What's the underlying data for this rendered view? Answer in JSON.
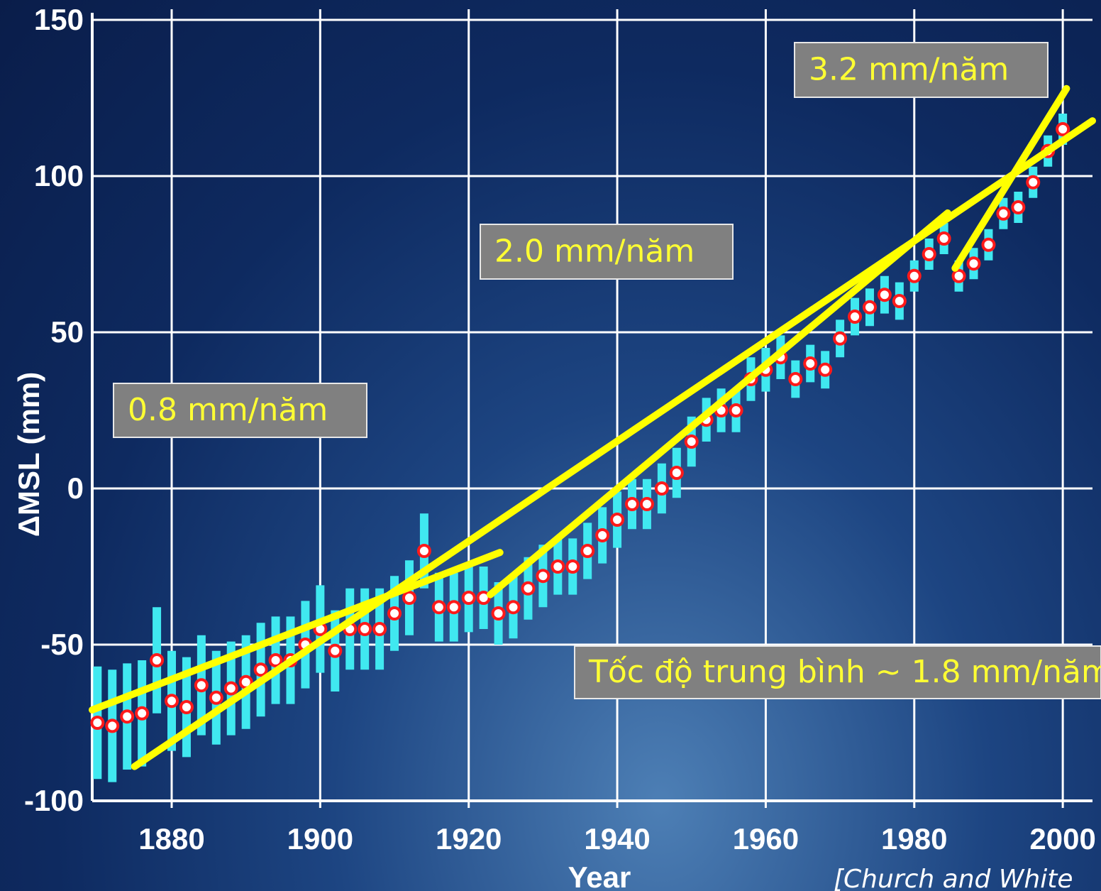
{
  "chart_data": {
    "type": "scatter",
    "x_label": "Year",
    "y_label": "ΔMSL (mm)",
    "xlim": [
      1869.3,
      2004
    ],
    "ylim": [
      -100,
      150
    ],
    "xticks": [
      1880,
      1900,
      1920,
      1940,
      1960,
      1980,
      2000
    ],
    "yticks": [
      -100,
      -50,
      0,
      50,
      100,
      150
    ],
    "grid": true,
    "x": [
      1870,
      1872,
      1874,
      1876,
      1878,
      1880,
      1882,
      1884,
      1886,
      1888,
      1890,
      1892,
      1894,
      1896,
      1898,
      1900,
      1902,
      1904,
      1906,
      1908,
      1910,
      1912,
      1914,
      1916,
      1918,
      1920,
      1922,
      1924,
      1926,
      1928,
      1930,
      1932,
      1934,
      1936,
      1938,
      1940,
      1942,
      1944,
      1946,
      1948,
      1950,
      1952,
      1954,
      1956,
      1958,
      1960,
      1962,
      1964,
      1966,
      1968,
      1970,
      1972,
      1974,
      1976,
      1978,
      1980,
      1982,
      1984,
      1986,
      1988,
      1990,
      1992,
      1994,
      1996,
      1998,
      2000
    ],
    "series": [
      {
        "color": "#ff1a1a",
        "error_color": "#40e8f0",
        "values": [
          -75,
          -76,
          -73,
          -72,
          -55,
          -68,
          -70,
          -63,
          -67,
          -64,
          -62,
          -58,
          -55,
          -55,
          -50,
          -45,
          -52,
          -45,
          -45,
          -45,
          -40,
          -35,
          -20,
          -38,
          -38,
          -35,
          -35,
          -40,
          -38,
          -32,
          -28,
          -25,
          -25,
          -20,
          -15,
          -10,
          -5,
          -5,
          0,
          5,
          15,
          22,
          25,
          25,
          35,
          38,
          42,
          35,
          40,
          38,
          48,
          55,
          58,
          62,
          60,
          68,
          75,
          80,
          68,
          72,
          78,
          88,
          90,
          98,
          108,
          115
        ],
        "errors": [
          18,
          18,
          17,
          17,
          17,
          16,
          16,
          16,
          15,
          15,
          15,
          15,
          14,
          14,
          14,
          14,
          13,
          13,
          13,
          13,
          12,
          12,
          12,
          11,
          11,
          11,
          10,
          10,
          10,
          10,
          10,
          9,
          9,
          9,
          9,
          9,
          8,
          8,
          8,
          8,
          8,
          7,
          7,
          7,
          7,
          7,
          7,
          6,
          6,
          6,
          6,
          6,
          6,
          6,
          6,
          5,
          5,
          5,
          5,
          5,
          5,
          5,
          5,
          5,
          5,
          5
        ]
      }
    ],
    "trend_lines": [
      {
        "color": "#ffff00",
        "x": [
          1869.3,
          1924.2
        ],
        "values": [
          -70.9,
          -20.5
        ]
      },
      {
        "color": "#ffff00",
        "x": [
          1875,
          2004
        ],
        "values": [
          -89,
          117.7
        ]
      },
      {
        "color": "#ffff00",
        "x": [
          1922.9,
          1984.5
        ],
        "values": [
          -34,
          88.2
        ]
      },
      {
        "color": "#ffff00",
        "x": [
          1985.5,
          2000.5
        ],
        "values": [
          70.5,
          128
        ]
      }
    ],
    "annotations": [
      "0.8 mm/năm",
      "2.0 mm/năm",
      "3.2 mm/năm",
      "Tốc độ trung bình ~ 1.8 mm/năm"
    ],
    "source": "[Church and White"
  }
}
